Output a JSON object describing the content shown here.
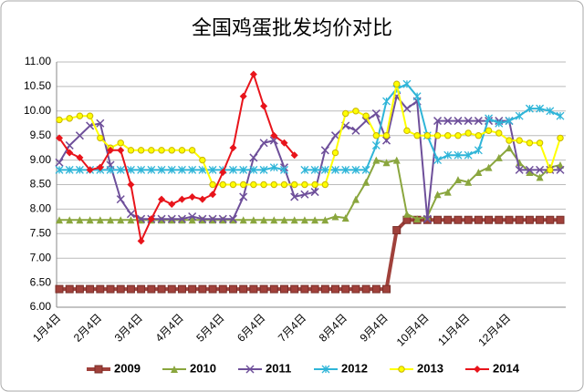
{
  "chart_data": {
    "type": "line",
    "title": "全国鸡蛋批发均价对比",
    "categories": [
      "1月4日",
      null,
      null,
      null,
      "2月4日",
      null,
      null,
      null,
      "3月4日",
      null,
      null,
      null,
      "4月4日",
      null,
      null,
      null,
      "5月4日",
      null,
      null,
      null,
      "6月4日",
      null,
      null,
      null,
      "7月4日",
      null,
      null,
      null,
      "8月4日",
      null,
      null,
      null,
      "9月4日",
      null,
      null,
      null,
      "10月4日",
      null,
      null,
      null,
      "11月4日",
      null,
      null,
      null,
      "12月4日",
      null,
      null,
      null,
      null,
      null
    ],
    "ylim": [
      6,
      11
    ],
    "yticks": [
      {
        "value": 6,
        "label": "6.00"
      },
      {
        "value": 6.5,
        "label": "6.50"
      },
      {
        "value": 7,
        "label": "7.00"
      },
      {
        "value": 7.5,
        "label": "7.50"
      },
      {
        "value": 8,
        "label": "8.00"
      },
      {
        "value": 8.5,
        "label": "8.50"
      },
      {
        "value": 9,
        "label": "9.00"
      },
      {
        "value": 9.5,
        "label": "9.50"
      },
      {
        "value": 10,
        "label": "10.00"
      },
      {
        "value": 10.5,
        "label": "10.50"
      },
      {
        "value": 11,
        "label": "11.00"
      }
    ],
    "grid": true,
    "legend": "bottom",
    "series": [
      {
        "name": "2009",
        "color": "#a0413b",
        "marker": "square",
        "values": [
          6.37,
          6.37,
          6.37,
          6.37,
          6.37,
          6.37,
          6.37,
          6.37,
          6.37,
          6.37,
          6.37,
          6.37,
          6.37,
          6.37,
          6.37,
          6.37,
          6.37,
          6.37,
          6.37,
          6.37,
          6.37,
          6.37,
          6.37,
          6.37,
          6.37,
          6.37,
          6.37,
          6.37,
          6.37,
          6.37,
          6.37,
          6.37,
          6.37,
          7.57,
          7.78,
          7.78,
          7.78,
          7.78,
          7.78,
          7.78,
          7.78,
          7.78,
          7.78,
          7.78,
          7.78,
          7.78,
          7.78,
          7.78,
          7.78,
          7.78
        ]
      },
      {
        "name": "2010",
        "color": "#8aa63e",
        "marker": "triangle",
        "values": [
          7.78,
          7.78,
          7.78,
          7.78,
          7.78,
          7.78,
          7.78,
          7.78,
          7.78,
          7.78,
          7.78,
          7.78,
          7.78,
          7.78,
          7.78,
          7.78,
          7.78,
          7.78,
          7.78,
          7.78,
          7.78,
          7.78,
          7.78,
          7.78,
          7.78,
          7.78,
          7.78,
          7.85,
          7.82,
          8.2,
          8.55,
          9.0,
          8.95,
          9.0,
          7.9,
          7.8,
          7.85,
          8.3,
          8.35,
          8.6,
          8.55,
          8.75,
          8.85,
          9.05,
          9.25,
          8.95,
          8.75,
          8.65,
          8.85,
          8.9
        ]
      },
      {
        "name": "2011",
        "color": "#6e4f9a",
        "marker": "x",
        "values": [
          8.95,
          9.3,
          9.5,
          9.7,
          9.75,
          8.9,
          8.2,
          7.9,
          7.8,
          7.8,
          7.8,
          7.8,
          7.8,
          7.85,
          7.8,
          7.8,
          7.8,
          7.8,
          8.25,
          9.05,
          9.35,
          9.4,
          8.85,
          8.25,
          8.3,
          8.35,
          9.2,
          9.5,
          9.7,
          9.6,
          9.8,
          9.95,
          9.4,
          10.3,
          10.05,
          10.2,
          7.8,
          9.8,
          9.8,
          9.8,
          9.8,
          9.8,
          9.8,
          9.8,
          9.8,
          8.8,
          8.8,
          8.8,
          8.8,
          8.8
        ]
      },
      {
        "name": "2012",
        "color": "#2fb5d8",
        "marker": "star",
        "values": [
          8.8,
          8.8,
          8.8,
          8.8,
          8.8,
          8.8,
          8.8,
          8.8,
          8.8,
          8.8,
          8.8,
          8.8,
          8.8,
          8.8,
          8.8,
          8.8,
          8.8,
          8.8,
          8.8,
          8.8,
          8.8,
          8.85,
          8.8,
          null,
          8.8,
          8.8,
          8.8,
          8.8,
          8.8,
          8.8,
          8.8,
          9.3,
          10.2,
          10.45,
          10.55,
          10.3,
          9.5,
          9.0,
          9.1,
          9.1,
          9.1,
          9.2,
          9.85,
          9.75,
          9.8,
          9.9,
          10.05,
          10.05,
          10.0,
          9.9
        ]
      },
      {
        "name": "2013",
        "color": "#ffff00",
        "marker": "circle",
        "values": [
          9.82,
          9.85,
          9.9,
          9.9,
          9.45,
          9.25,
          9.35,
          9.2,
          9.2,
          9.2,
          9.2,
          9.2,
          9.2,
          9.2,
          9.0,
          8.5,
          8.5,
          8.5,
          8.5,
          8.5,
          8.5,
          8.5,
          8.5,
          8.5,
          8.5,
          8.5,
          8.5,
          9.15,
          9.95,
          10.0,
          9.9,
          9.5,
          9.5,
          10.55,
          9.6,
          9.5,
          9.5,
          9.5,
          9.5,
          9.5,
          9.55,
          9.5,
          9.6,
          9.55,
          9.4,
          9.4,
          9.35,
          9.35,
          8.8,
          9.45
        ]
      },
      {
        "name": "2014",
        "color": "#e8141b",
        "marker": "diamond",
        "values": [
          9.45,
          9.15,
          9.05,
          8.8,
          8.85,
          9.2,
          9.2,
          8.5,
          7.35,
          7.8,
          8.2,
          8.1,
          8.2,
          8.25,
          8.2,
          8.3,
          8.75,
          9.25,
          10.3,
          10.75,
          10.1,
          9.5,
          9.35,
          9.1,
          null,
          null,
          null,
          null,
          null,
          null,
          null,
          null,
          null,
          null,
          null,
          null,
          null,
          null,
          null,
          null,
          null,
          null,
          null,
          null,
          null,
          null,
          null,
          null,
          null,
          null
        ]
      }
    ]
  }
}
